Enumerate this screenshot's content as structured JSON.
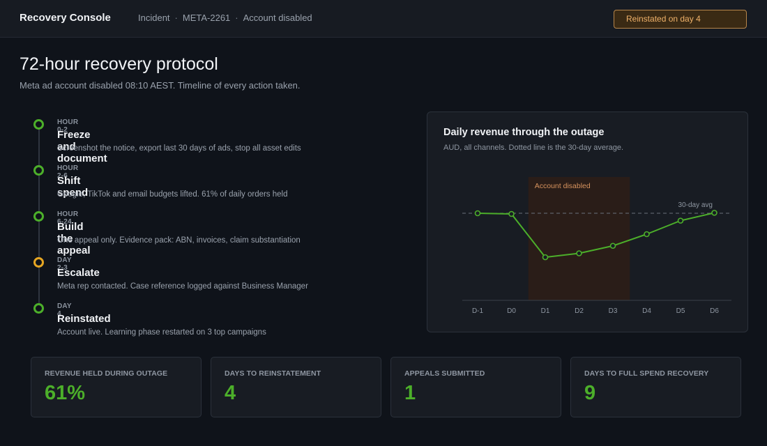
{
  "header": {
    "app_title": "Recovery Console",
    "breadcrumb": [
      "Incident",
      "META-2261",
      "Account disabled"
    ],
    "status_badge": "Reinstated on day 4"
  },
  "main": {
    "title": "72-hour recovery protocol",
    "subtitle": "Meta ad account disabled 08:10 AEST. Timeline of every action taken."
  },
  "timeline": [
    {
      "tag": "HOUR 0-2",
      "title": "Freeze and document",
      "desc": "Screenshot the notice, export last 30 days of ads, stop all asset edits",
      "status": "done"
    },
    {
      "tag": "HOUR 2-6",
      "title": "Shift spend",
      "desc": "Google, TikTok and email budgets lifted. 61% of daily orders held",
      "status": "done"
    },
    {
      "tag": "HOUR 6-24",
      "title": "Build the appeal",
      "desc": "One appeal only. Evidence pack: ABN, invoices, claim substantiation",
      "status": "done"
    },
    {
      "tag": "DAY 2-3",
      "title": "Escalate",
      "desc": "Meta rep contacted. Case reference logged against Business Manager",
      "status": "escalated"
    },
    {
      "tag": "DAY 4",
      "title": "Reinstated",
      "desc": "Account live. Learning phase restarted on 3 top campaigns",
      "status": "done"
    }
  ],
  "chart": {
    "title": "Daily revenue through the outage",
    "subtitle": "AUD, all channels. Dotted line is the 30-day average."
  },
  "chart_data": {
    "type": "line",
    "categories": [
      "D-1",
      "D0",
      "D1",
      "D2",
      "D3",
      "D4",
      "D5",
      "D6"
    ],
    "values": [
      100,
      99.2,
      49.5,
      54,
      62.6,
      76,
      91.5,
      100.5
    ],
    "reference_line": {
      "label": "30-day avg",
      "value": 100
    },
    "shaded_region": {
      "label": "Account disabled",
      "from": "D1",
      "to": "D3"
    },
    "ylim": [
      0,
      140
    ],
    "colors": {
      "line": "#4caf2a",
      "shade": "#2a1d18",
      "shade_label": "#d7935e",
      "reference": "#6a717b"
    }
  },
  "kpis": [
    {
      "label": "REVENUE HELD DURING OUTAGE",
      "value": "61%"
    },
    {
      "label": "DAYS TO REINSTATEMENT",
      "value": "4"
    },
    {
      "label": "APPEALS SUBMITTED",
      "value": "1"
    },
    {
      "label": "DAYS TO FULL SPEND RECOVERY",
      "value": "9"
    }
  ],
  "colors": {
    "accent": "#4caf2a",
    "warning": "#e6a623",
    "badge": "#f0b26a"
  }
}
